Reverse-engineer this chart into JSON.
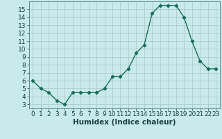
{
  "x": [
    0,
    1,
    2,
    3,
    4,
    5,
    6,
    7,
    8,
    9,
    10,
    11,
    12,
    13,
    14,
    15,
    16,
    17,
    18,
    19,
    20,
    21,
    22,
    23
  ],
  "y": [
    6.0,
    5.0,
    4.5,
    3.5,
    3.0,
    4.5,
    4.5,
    4.5,
    4.5,
    5.0,
    6.5,
    6.5,
    7.5,
    9.5,
    10.5,
    14.5,
    15.5,
    15.5,
    15.5,
    14.0,
    11.0,
    8.5,
    7.5,
    7.5
  ],
  "line_color": "#1a6b5a",
  "marker": "D",
  "marker_size": 2.2,
  "background_color": "#c8eaea",
  "grid_color": "#b0cccc",
  "xlabel": "Humidex (Indice chaleur)",
  "xlim": [
    -0.5,
    23.5
  ],
  "ylim": [
    2.5,
    16
  ],
  "yticks": [
    3,
    4,
    5,
    6,
    7,
    8,
    9,
    10,
    11,
    12,
    13,
    14,
    15
  ],
  "xticks": [
    0,
    1,
    2,
    3,
    4,
    5,
    6,
    7,
    8,
    9,
    10,
    11,
    12,
    13,
    14,
    15,
    16,
    17,
    18,
    19,
    20,
    21,
    22,
    23
  ],
  "xlabel_fontsize": 7.5,
  "tick_fontsize": 6.5,
  "label_color": "#1a4040",
  "axis_color": "#5a8a8a",
  "linewidth": 1.0
}
